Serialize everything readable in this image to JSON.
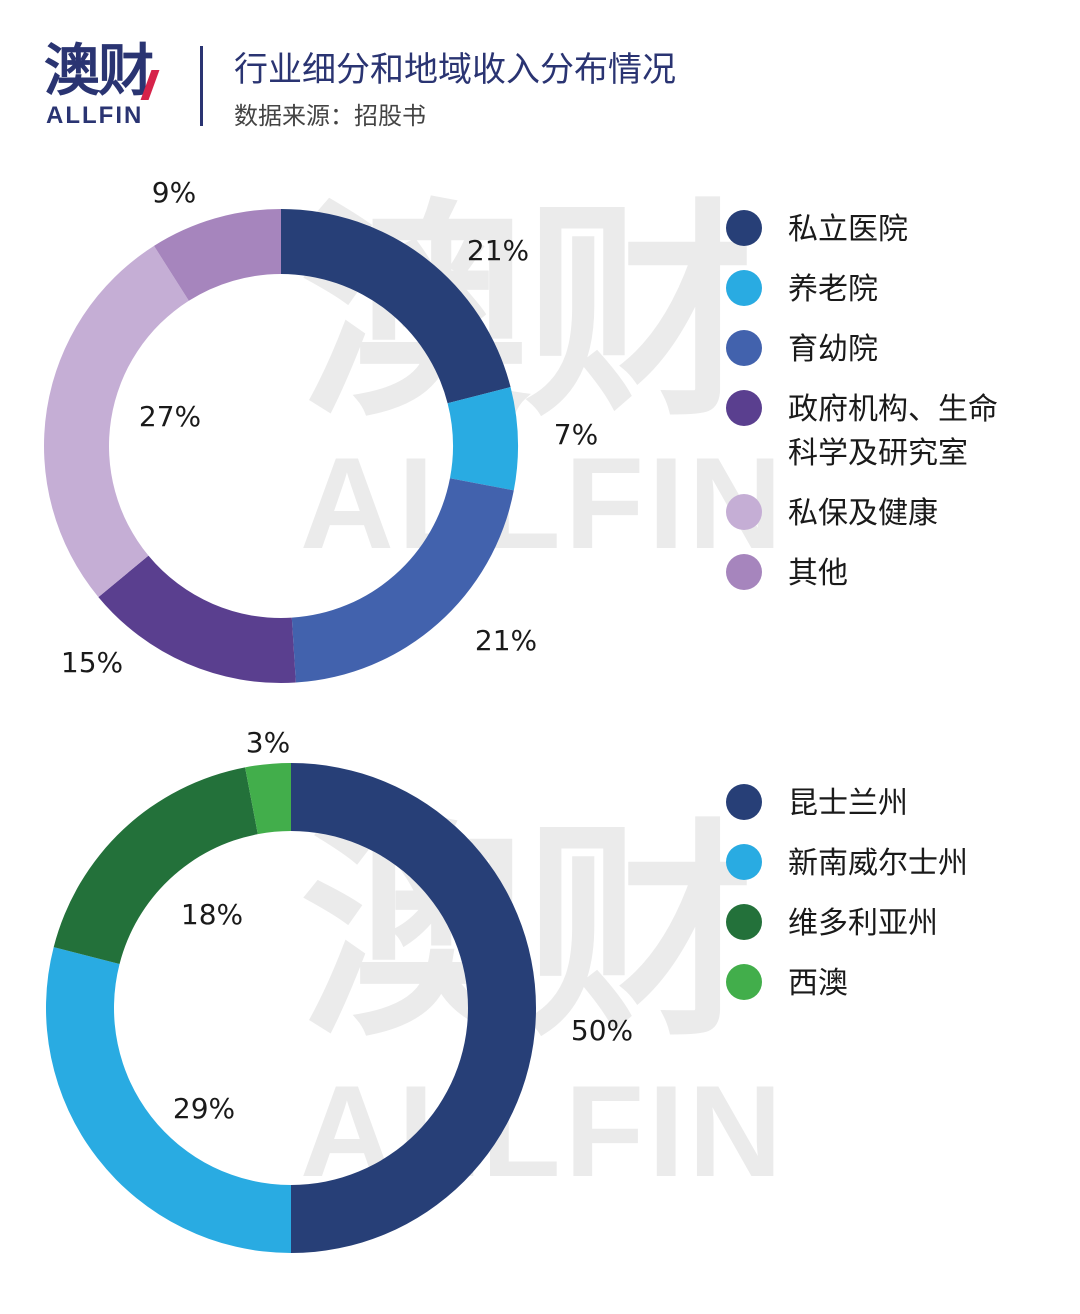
{
  "header": {
    "logo_cn": "澳财",
    "logo_en": "ALLFIN",
    "title": "行业细分和地域收入分布情况",
    "source": "数据来源：招股书"
  },
  "watermark": {
    "cn": "澳财",
    "en": "ALLFIN"
  },
  "chart_data": [
    {
      "type": "pie",
      "donut": true,
      "legend_position": "right",
      "categories": [
        "私立医院",
        "养老院",
        "育幼院",
        "政府机构、生命科学及研究室",
        "私保及健康",
        "其他"
      ],
      "values": [
        21,
        7,
        21,
        15,
        27,
        9
      ],
      "value_labels": [
        "21%",
        "7%",
        "21%",
        "15%",
        "27%",
        "9%"
      ],
      "colors": [
        "#273f77",
        "#29abe2",
        "#4262ad",
        "#5a3f8f",
        "#c5aed5",
        "#a685bd"
      ]
    },
    {
      "type": "pie",
      "donut": true,
      "legend_position": "right",
      "categories": [
        "昆士兰州",
        "新南威尔士州",
        "维多利亚州",
        "西澳"
      ],
      "values": [
        50,
        29,
        18,
        3
      ],
      "value_labels": [
        "50%",
        "29%",
        "18%",
        "3%"
      ],
      "colors": [
        "#273f77",
        "#29abe2",
        "#23713a",
        "#42ae4b"
      ]
    }
  ]
}
